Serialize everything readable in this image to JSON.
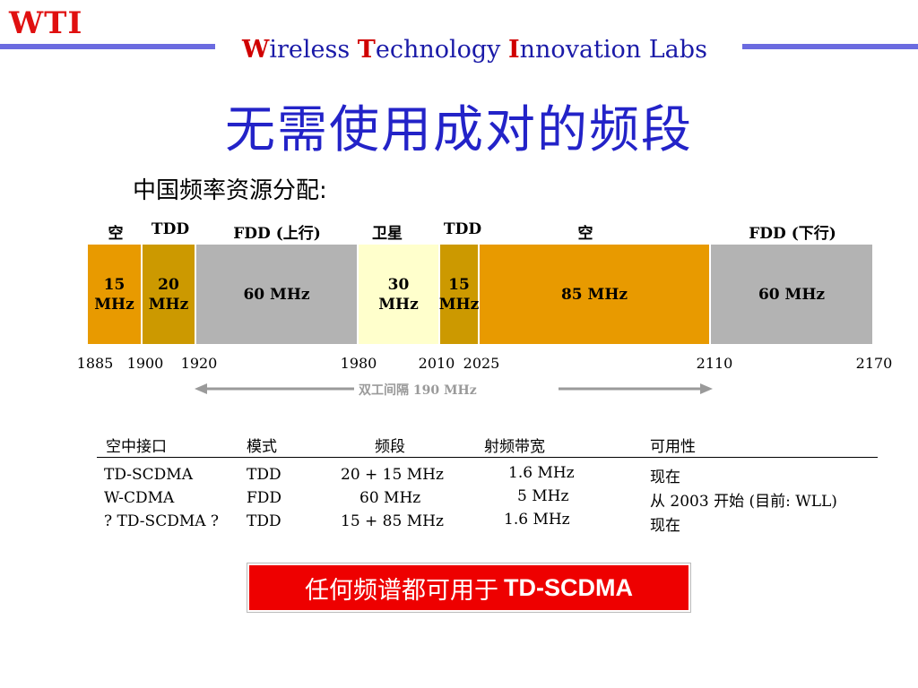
{
  "header": {
    "logo": "WTI",
    "lab_parts": [
      {
        "cap": "W",
        "rest": "ireless "
      },
      {
        "cap": "T",
        "rest": "echnology "
      },
      {
        "cap": "I",
        "rest": "nnovation Labs"
      }
    ],
    "accent_color": "#6b6be0"
  },
  "title": "无需使用成对的频段",
  "subtitle": "中国频率资源分配:",
  "spectrum": {
    "top_labels": [
      {
        "text": "空"
      },
      {
        "text": "TDD"
      },
      {
        "text": "FDD (上行)"
      },
      {
        "text": "卫星"
      },
      {
        "text": "TDD"
      },
      {
        "text": "空"
      },
      {
        "text": "FDD (下行)"
      }
    ],
    "segments": [
      {
        "line1": "15",
        "line2": "MHz",
        "color": "#e89a00",
        "start_mhz": 1885,
        "end_mhz": 1900
      },
      {
        "line1": "20",
        "line2": "MHz",
        "color": "#cc9900",
        "start_mhz": 1900,
        "end_mhz": 1920
      },
      {
        "line1": "60 MHz",
        "line2": "",
        "color": "#b3b3b3",
        "start_mhz": 1920,
        "end_mhz": 1980
      },
      {
        "line1": "30",
        "line2": "MHz",
        "color": "#ffffcc",
        "start_mhz": 1980,
        "end_mhz": 2010
      },
      {
        "line1": "15",
        "line2": "MHz",
        "color": "#cc9900",
        "start_mhz": 2010,
        "end_mhz": 2025
      },
      {
        "line1": "85 MHz",
        "line2": "",
        "color": "#e89a00",
        "start_mhz": 2025,
        "end_mhz": 2110
      },
      {
        "line1": "60 MHz",
        "line2": "",
        "color": "#b3b3b3",
        "start_mhz": 2110,
        "end_mhz": 2170
      }
    ],
    "axis_ticks": [
      "1885",
      "1900",
      "1920",
      "1980",
      "2010",
      "2025",
      "2110",
      "2170"
    ],
    "duplex_label": "双工间隔 190 MHz"
  },
  "table": {
    "headers": [
      "空中接口",
      "模式",
      "频段",
      "射频带宽",
      "可用性"
    ],
    "rows": [
      [
        "TD-SCDMA",
        "TDD",
        "20 + 15 MHz",
        "1.6 MHz",
        "现在"
      ],
      [
        "W-CDMA",
        "FDD",
        "60 MHz",
        "5 MHz",
        "从 2003 开始  (目前: WLL)"
      ],
      [
        "? TD-SCDMA ?",
        "TDD",
        "15 + 85 MHz",
        "1.6 MHz",
        "现在"
      ]
    ]
  },
  "banner": {
    "prefix": "任何频谱都可用于",
    "emph": "TD-SCDMA",
    "color": "#ee0000"
  }
}
